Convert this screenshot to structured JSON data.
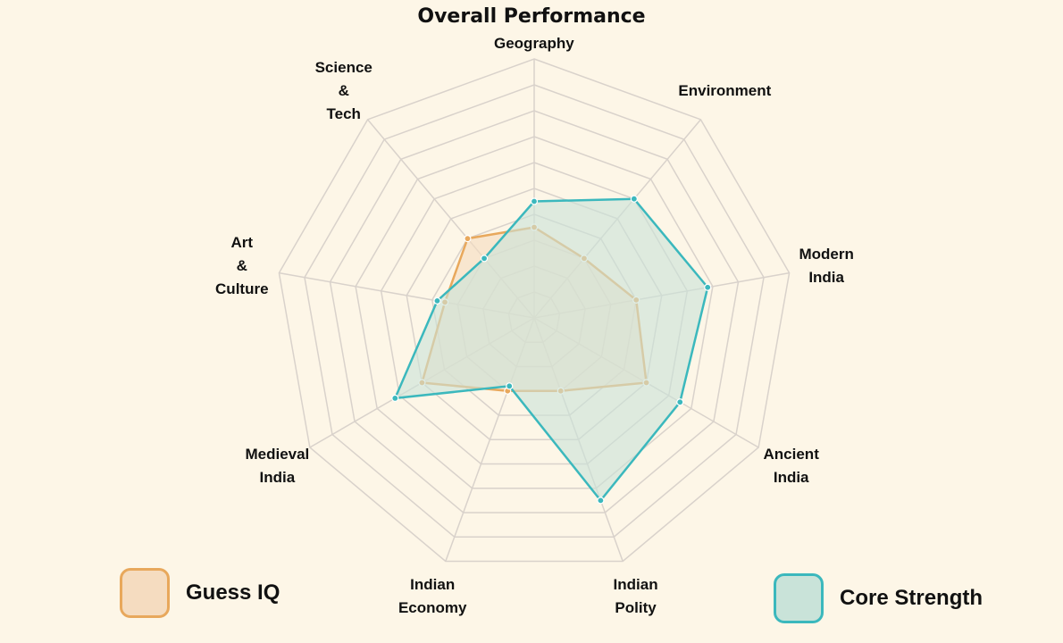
{
  "chart_data": {
    "type": "radar",
    "title": "Overall Performance",
    "axes": [
      "Geography",
      "Environment",
      "Modern\nIndia",
      "Ancient\nIndia",
      "Indian\nPolity",
      "Indian\nEconomy",
      "Medieval\nIndia",
      "Art\n&\nCulture",
      "Science\n&\nTech"
    ],
    "rmax": 10,
    "rings": 10,
    "series": [
      {
        "name": "Guess IQ",
        "color": "#e8a85c",
        "fill": "#f5dcc0",
        "values": [
          3.5,
          3.0,
          4.0,
          5.0,
          3.0,
          3.0,
          5.0,
          3.5,
          4.0
        ]
      },
      {
        "name": "Core Strength",
        "color": "#3bb8bd",
        "fill": "#c9e3d9",
        "values": [
          4.5,
          6.0,
          6.8,
          6.5,
          7.5,
          2.8,
          6.2,
          3.8,
          3.0
        ]
      }
    ],
    "legend": "bottom"
  }
}
